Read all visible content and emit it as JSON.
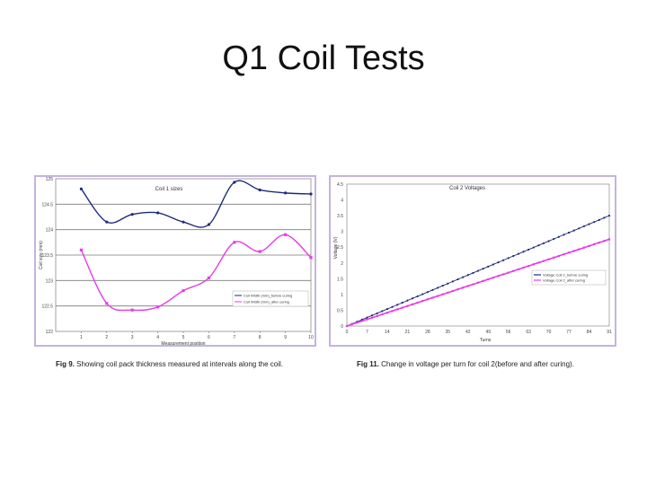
{
  "page": {
    "title": "Q1 Coil Tests"
  },
  "colors": {
    "plot_bg": "#ffffff",
    "frame": "#c3b4de",
    "series_blue": "#1f2a7a",
    "series_magenta": "#e83be6",
    "grid": "#7a7a7a"
  },
  "captions": [
    {
      "label": "Fig 9.",
      "text": " Showing coil pack thickness measured at intervals along the coil."
    },
    {
      "label": "Fig 11.",
      "text": " Change in voltage per turn for coil 2(before and after curing)."
    }
  ],
  "chart_data": [
    {
      "type": "line",
      "title": "Coil 1 sizes",
      "xlabel": "Measurement position",
      "ylabel": "Coil size (mm)",
      "x": [
        1,
        2,
        3,
        4,
        5,
        6,
        7,
        8,
        9,
        10
      ],
      "x_ticks": [
        "1",
        "2",
        "3",
        "4",
        "5",
        "6",
        "7",
        "8",
        "9",
        "10"
      ],
      "xlim": [
        0,
        10
      ],
      "ylim": [
        122,
        125
      ],
      "y_ticks": [
        "122",
        "122.5",
        "123",
        "123.5",
        "124",
        "124.5",
        "125"
      ],
      "grid": true,
      "legend_position": "bottom-right",
      "series": [
        {
          "name": "Coil Width (mm)_before curing",
          "color": "#1f2a7a",
          "values": [
            124.8,
            124.15,
            124.3,
            124.33,
            124.15,
            124.1,
            124.93,
            124.78,
            124.72,
            124.7
          ]
        },
        {
          "name": "Coil Width (mm)_after curing",
          "color": "#e83be6",
          "values": [
            123.6,
            122.55,
            122.42,
            122.48,
            122.8,
            123.05,
            123.75,
            123.57,
            123.9,
            123.45
          ]
        }
      ]
    },
    {
      "type": "line",
      "title": "Coil 2 Voltages",
      "xlabel": "Turns",
      "ylabel": "Voltage (V)",
      "x_start": 0,
      "x_end": 91,
      "x_step": 1.75,
      "xlim": [
        0,
        91
      ],
      "x_ticks": [
        "0",
        "7",
        "14",
        "21",
        "28",
        "35",
        "42",
        "49",
        "56",
        "63",
        "70",
        "77",
        "84",
        "91"
      ],
      "ylim": [
        0,
        4.5
      ],
      "y_ticks": [
        "0",
        "0.5",
        "1",
        "1.5",
        "2",
        "2.5",
        "3",
        "3.5",
        "4",
        "4.5"
      ],
      "grid": false,
      "legend_position": "right",
      "series": [
        {
          "name": "Voltage Coil 2_before curing",
          "color": "#1f2a7a",
          "start": 0,
          "end": 3.5
        },
        {
          "name": "Voltage Coil 2_after curing",
          "color": "#e83be6",
          "start": 0,
          "end": 2.75
        }
      ]
    }
  ]
}
